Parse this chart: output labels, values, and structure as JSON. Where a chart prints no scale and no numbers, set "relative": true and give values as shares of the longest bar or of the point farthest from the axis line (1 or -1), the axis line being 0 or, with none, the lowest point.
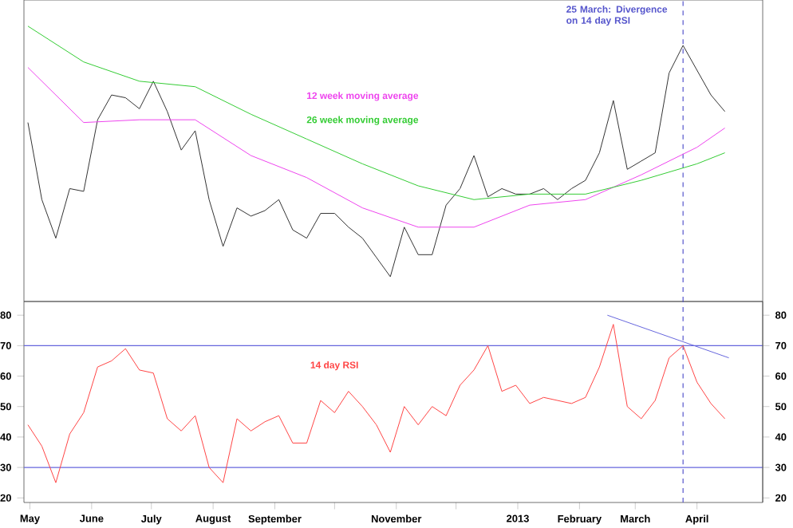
{
  "chart_data": [
    {
      "type": "line",
      "relative": true,
      "grid": false,
      "marker": "none",
      "line_style": "solid",
      "xlim": [
        "2012-04-28",
        "2013-05-04"
      ],
      "x": [
        "2012-04-30",
        "2012-05-07",
        "2012-05-14",
        "2012-05-21",
        "2012-05-28",
        "2012-06-04",
        "2012-06-11",
        "2012-06-18",
        "2012-06-25",
        "2012-07-02",
        "2012-07-09",
        "2012-07-16",
        "2012-07-23",
        "2012-07-30",
        "2012-08-06",
        "2012-08-13",
        "2012-08-20",
        "2012-08-27",
        "2012-09-03",
        "2012-09-10",
        "2012-09-17",
        "2012-09-24",
        "2012-10-01",
        "2012-10-08",
        "2012-10-15",
        "2012-10-22",
        "2012-10-29",
        "2012-11-05",
        "2012-11-12",
        "2012-11-19",
        "2012-11-26",
        "2012-12-03",
        "2012-12-10",
        "2012-12-17",
        "2012-12-24",
        "2012-12-31",
        "2013-01-07",
        "2013-01-14",
        "2013-01-21",
        "2013-01-28",
        "2013-02-04",
        "2013-02-11",
        "2013-02-18",
        "2013-02-25",
        "2013-03-04",
        "2013-03-11",
        "2013-03-18",
        "2013-03-25",
        "2013-04-01",
        "2013-04-08",
        "2013-04-15"
      ],
      "series": [
        {
          "color": "#333333",
          "values": [
            0.65,
            0.37,
            0.23,
            0.41,
            0.4,
            0.66,
            0.75,
            0.74,
            0.7,
            0.8,
            0.69,
            0.55,
            0.62,
            0.37,
            0.2,
            0.34,
            0.31,
            0.33,
            0.37,
            0.26,
            0.23,
            0.32,
            0.32,
            0.27,
            0.23,
            0.16,
            0.09,
            0.27,
            0.17,
            0.17,
            0.35,
            0.41,
            0.53,
            0.38,
            0.41,
            0.39,
            0.39,
            0.41,
            0.37,
            0.41,
            0.44,
            0.54,
            0.73,
            0.48,
            0.51,
            0.54,
            0.83,
            0.93,
            0.84,
            0.75,
            0.69
          ]
        },
        {
          "name": "12 week moving average",
          "color": "#ee44ee",
          "x": [
            "2012-04-30",
            "2012-05-28",
            "2012-06-25",
            "2012-07-23",
            "2012-08-20",
            "2012-09-17",
            "2012-10-15",
            "2012-11-12",
            "2012-12-10",
            "2013-01-07",
            "2013-02-04",
            "2013-03-04",
            "2013-04-01",
            "2013-04-15"
          ],
          "values": [
            0.85,
            0.65,
            0.66,
            0.66,
            0.53,
            0.45,
            0.34,
            0.27,
            0.27,
            0.35,
            0.37,
            0.46,
            0.56,
            0.63
          ]
        },
        {
          "name": "26 week moving average",
          "color": "#33cc33",
          "x": [
            "2012-04-30",
            "2012-05-28",
            "2012-06-25",
            "2012-07-23",
            "2012-08-20",
            "2012-09-17",
            "2012-10-15",
            "2012-11-12",
            "2012-12-10",
            "2013-01-07",
            "2013-02-04",
            "2013-03-04",
            "2013-04-01",
            "2013-04-15"
          ],
          "values": [
            1.0,
            0.87,
            0.8,
            0.78,
            0.68,
            0.59,
            0.5,
            0.42,
            0.37,
            0.39,
            0.39,
            0.44,
            0.5,
            0.54
          ]
        }
      ],
      "ref_lines": [
        {
          "axis": "x",
          "value": "2013-03-25",
          "label": "25 March: Divergence on 14 day RSI",
          "color": "#5555cc",
          "line_style": "dashed"
        }
      ]
    },
    {
      "type": "line",
      "grid": false,
      "marker": "none",
      "line_style": "solid",
      "xlim": [
        "2012-04-28",
        "2013-05-04"
      ],
      "xticks": [
        {
          "value": "2012-05-01",
          "label": "May"
        },
        {
          "value": "2012-06-01",
          "label": "June"
        },
        {
          "value": "2012-07-01",
          "label": "July"
        },
        {
          "value": "2012-08-01",
          "label": "August"
        },
        {
          "value": "2012-09-01",
          "label": "September"
        },
        {
          "value": "2012-10-01",
          "label": null
        },
        {
          "value": "2012-11-01",
          "label": "November"
        },
        {
          "value": "2012-12-01",
          "label": null
        },
        {
          "value": "2013-01-01",
          "label": "2013"
        },
        {
          "value": "2013-02-01",
          "label": "February"
        },
        {
          "value": "2013-03-01",
          "label": "March"
        },
        {
          "value": "2013-04-01",
          "label": "April"
        }
      ],
      "ylim": [
        18.5,
        84.5
      ],
      "yticks": [
        20,
        30,
        40,
        50,
        60,
        70,
        80
      ],
      "y2lim": [
        18.5,
        84.5
      ],
      "y2ticks": [
        20,
        30,
        40,
        50,
        60,
        70,
        80
      ],
      "x": [
        "2012-04-30",
        "2012-05-07",
        "2012-05-14",
        "2012-05-21",
        "2012-05-28",
        "2012-06-04",
        "2012-06-11",
        "2012-06-18",
        "2012-06-25",
        "2012-07-02",
        "2012-07-09",
        "2012-07-16",
        "2012-07-23",
        "2012-07-30",
        "2012-08-06",
        "2012-08-13",
        "2012-08-20",
        "2012-08-27",
        "2012-09-03",
        "2012-09-10",
        "2012-09-17",
        "2012-09-24",
        "2012-10-01",
        "2012-10-08",
        "2012-10-15",
        "2012-10-22",
        "2012-10-29",
        "2012-11-05",
        "2012-11-12",
        "2012-11-19",
        "2012-11-26",
        "2012-12-03",
        "2012-12-10",
        "2012-12-17",
        "2012-12-24",
        "2012-12-31",
        "2013-01-07",
        "2013-01-14",
        "2013-01-21",
        "2013-01-28",
        "2013-02-04",
        "2013-02-11",
        "2013-02-18",
        "2013-02-25",
        "2013-03-04",
        "2013-03-11",
        "2013-03-18",
        "2013-03-25",
        "2013-04-01",
        "2013-04-08",
        "2013-04-15"
      ],
      "series": [
        {
          "name": "14 day RSI",
          "color": "#ff4444",
          "values": [
            44,
            37,
            25,
            41,
            48,
            63,
            65,
            69,
            62,
            61,
            46,
            42,
            47,
            30,
            25,
            46,
            42,
            45,
            47,
            38,
            38,
            52,
            48,
            55,
            50,
            44,
            35,
            50,
            44,
            50,
            47,
            57,
            62,
            70,
            55,
            57,
            51,
            53,
            52,
            51,
            53,
            63,
            77,
            50,
            46,
            52,
            66,
            70,
            58,
            51,
            46
          ]
        },
        {
          "color": "#6666dd",
          "x": [
            "2013-02-15",
            "2013-04-17"
          ],
          "values": [
            80,
            66
          ]
        }
      ],
      "ref_lines": [
        {
          "axis": "y",
          "value": 70,
          "color": "#6666dd"
        },
        {
          "axis": "y",
          "value": 30,
          "color": "#6666dd"
        },
        {
          "axis": "x",
          "value": "2013-03-25",
          "color": "#5555cc",
          "line_style": "dashed"
        }
      ]
    }
  ]
}
